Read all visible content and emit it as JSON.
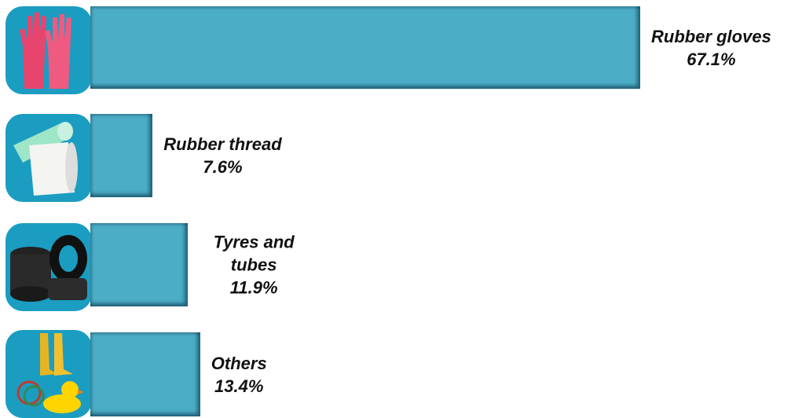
{
  "chart_data": {
    "type": "bar",
    "orientation": "horizontal",
    "categories": [
      "Rubber gloves",
      "Rubber thread",
      "Tyres and tubes",
      "Others"
    ],
    "values": [
      67.1,
      7.6,
      11.9,
      13.4
    ],
    "value_labels": [
      "67.1%",
      "7.6%",
      "11.9%",
      "13.4%"
    ],
    "color": "#4badc6"
  }
}
